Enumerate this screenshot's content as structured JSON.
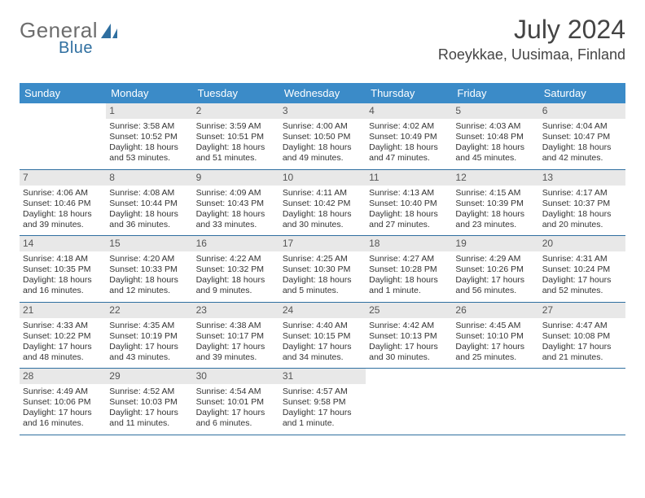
{
  "brand": {
    "text1": "General",
    "text2": "Blue",
    "color_gray": "#6d6d6d",
    "color_blue": "#2f6fa0"
  },
  "header": {
    "month": "July 2024",
    "location": "Roeykkae, Uusimaa, Finland"
  },
  "colors": {
    "dow_bg": "#3b8bc8",
    "dow_text": "#ffffff",
    "daynum_bg": "#e8e8e8",
    "week_border": "#2f6fa0"
  },
  "dow": [
    "Sunday",
    "Monday",
    "Tuesday",
    "Wednesday",
    "Thursday",
    "Friday",
    "Saturday"
  ],
  "weeks": [
    [
      null,
      {
        "n": "1",
        "sr": "Sunrise: 3:58 AM",
        "ss": "Sunset: 10:52 PM",
        "d1": "Daylight: 18 hours",
        "d2": "and 53 minutes."
      },
      {
        "n": "2",
        "sr": "Sunrise: 3:59 AM",
        "ss": "Sunset: 10:51 PM",
        "d1": "Daylight: 18 hours",
        "d2": "and 51 minutes."
      },
      {
        "n": "3",
        "sr": "Sunrise: 4:00 AM",
        "ss": "Sunset: 10:50 PM",
        "d1": "Daylight: 18 hours",
        "d2": "and 49 minutes."
      },
      {
        "n": "4",
        "sr": "Sunrise: 4:02 AM",
        "ss": "Sunset: 10:49 PM",
        "d1": "Daylight: 18 hours",
        "d2": "and 47 minutes."
      },
      {
        "n": "5",
        "sr": "Sunrise: 4:03 AM",
        "ss": "Sunset: 10:48 PM",
        "d1": "Daylight: 18 hours",
        "d2": "and 45 minutes."
      },
      {
        "n": "6",
        "sr": "Sunrise: 4:04 AM",
        "ss": "Sunset: 10:47 PM",
        "d1": "Daylight: 18 hours",
        "d2": "and 42 minutes."
      }
    ],
    [
      {
        "n": "7",
        "sr": "Sunrise: 4:06 AM",
        "ss": "Sunset: 10:46 PM",
        "d1": "Daylight: 18 hours",
        "d2": "and 39 minutes."
      },
      {
        "n": "8",
        "sr": "Sunrise: 4:08 AM",
        "ss": "Sunset: 10:44 PM",
        "d1": "Daylight: 18 hours",
        "d2": "and 36 minutes."
      },
      {
        "n": "9",
        "sr": "Sunrise: 4:09 AM",
        "ss": "Sunset: 10:43 PM",
        "d1": "Daylight: 18 hours",
        "d2": "and 33 minutes."
      },
      {
        "n": "10",
        "sr": "Sunrise: 4:11 AM",
        "ss": "Sunset: 10:42 PM",
        "d1": "Daylight: 18 hours",
        "d2": "and 30 minutes."
      },
      {
        "n": "11",
        "sr": "Sunrise: 4:13 AM",
        "ss": "Sunset: 10:40 PM",
        "d1": "Daylight: 18 hours",
        "d2": "and 27 minutes."
      },
      {
        "n": "12",
        "sr": "Sunrise: 4:15 AM",
        "ss": "Sunset: 10:39 PM",
        "d1": "Daylight: 18 hours",
        "d2": "and 23 minutes."
      },
      {
        "n": "13",
        "sr": "Sunrise: 4:17 AM",
        "ss": "Sunset: 10:37 PM",
        "d1": "Daylight: 18 hours",
        "d2": "and 20 minutes."
      }
    ],
    [
      {
        "n": "14",
        "sr": "Sunrise: 4:18 AM",
        "ss": "Sunset: 10:35 PM",
        "d1": "Daylight: 18 hours",
        "d2": "and 16 minutes."
      },
      {
        "n": "15",
        "sr": "Sunrise: 4:20 AM",
        "ss": "Sunset: 10:33 PM",
        "d1": "Daylight: 18 hours",
        "d2": "and 12 minutes."
      },
      {
        "n": "16",
        "sr": "Sunrise: 4:22 AM",
        "ss": "Sunset: 10:32 PM",
        "d1": "Daylight: 18 hours",
        "d2": "and 9 minutes."
      },
      {
        "n": "17",
        "sr": "Sunrise: 4:25 AM",
        "ss": "Sunset: 10:30 PM",
        "d1": "Daylight: 18 hours",
        "d2": "and 5 minutes."
      },
      {
        "n": "18",
        "sr": "Sunrise: 4:27 AM",
        "ss": "Sunset: 10:28 PM",
        "d1": "Daylight: 18 hours",
        "d2": "and 1 minute."
      },
      {
        "n": "19",
        "sr": "Sunrise: 4:29 AM",
        "ss": "Sunset: 10:26 PM",
        "d1": "Daylight: 17 hours",
        "d2": "and 56 minutes."
      },
      {
        "n": "20",
        "sr": "Sunrise: 4:31 AM",
        "ss": "Sunset: 10:24 PM",
        "d1": "Daylight: 17 hours",
        "d2": "and 52 minutes."
      }
    ],
    [
      {
        "n": "21",
        "sr": "Sunrise: 4:33 AM",
        "ss": "Sunset: 10:22 PM",
        "d1": "Daylight: 17 hours",
        "d2": "and 48 minutes."
      },
      {
        "n": "22",
        "sr": "Sunrise: 4:35 AM",
        "ss": "Sunset: 10:19 PM",
        "d1": "Daylight: 17 hours",
        "d2": "and 43 minutes."
      },
      {
        "n": "23",
        "sr": "Sunrise: 4:38 AM",
        "ss": "Sunset: 10:17 PM",
        "d1": "Daylight: 17 hours",
        "d2": "and 39 minutes."
      },
      {
        "n": "24",
        "sr": "Sunrise: 4:40 AM",
        "ss": "Sunset: 10:15 PM",
        "d1": "Daylight: 17 hours",
        "d2": "and 34 minutes."
      },
      {
        "n": "25",
        "sr": "Sunrise: 4:42 AM",
        "ss": "Sunset: 10:13 PM",
        "d1": "Daylight: 17 hours",
        "d2": "and 30 minutes."
      },
      {
        "n": "26",
        "sr": "Sunrise: 4:45 AM",
        "ss": "Sunset: 10:10 PM",
        "d1": "Daylight: 17 hours",
        "d2": "and 25 minutes."
      },
      {
        "n": "27",
        "sr": "Sunrise: 4:47 AM",
        "ss": "Sunset: 10:08 PM",
        "d1": "Daylight: 17 hours",
        "d2": "and 21 minutes."
      }
    ],
    [
      {
        "n": "28",
        "sr": "Sunrise: 4:49 AM",
        "ss": "Sunset: 10:06 PM",
        "d1": "Daylight: 17 hours",
        "d2": "and 16 minutes."
      },
      {
        "n": "29",
        "sr": "Sunrise: 4:52 AM",
        "ss": "Sunset: 10:03 PM",
        "d1": "Daylight: 17 hours",
        "d2": "and 11 minutes."
      },
      {
        "n": "30",
        "sr": "Sunrise: 4:54 AM",
        "ss": "Sunset: 10:01 PM",
        "d1": "Daylight: 17 hours",
        "d2": "and 6 minutes."
      },
      {
        "n": "31",
        "sr": "Sunrise: 4:57 AM",
        "ss": "Sunset: 9:58 PM",
        "d1": "Daylight: 17 hours",
        "d2": "and 1 minute."
      },
      null,
      null,
      null
    ]
  ]
}
